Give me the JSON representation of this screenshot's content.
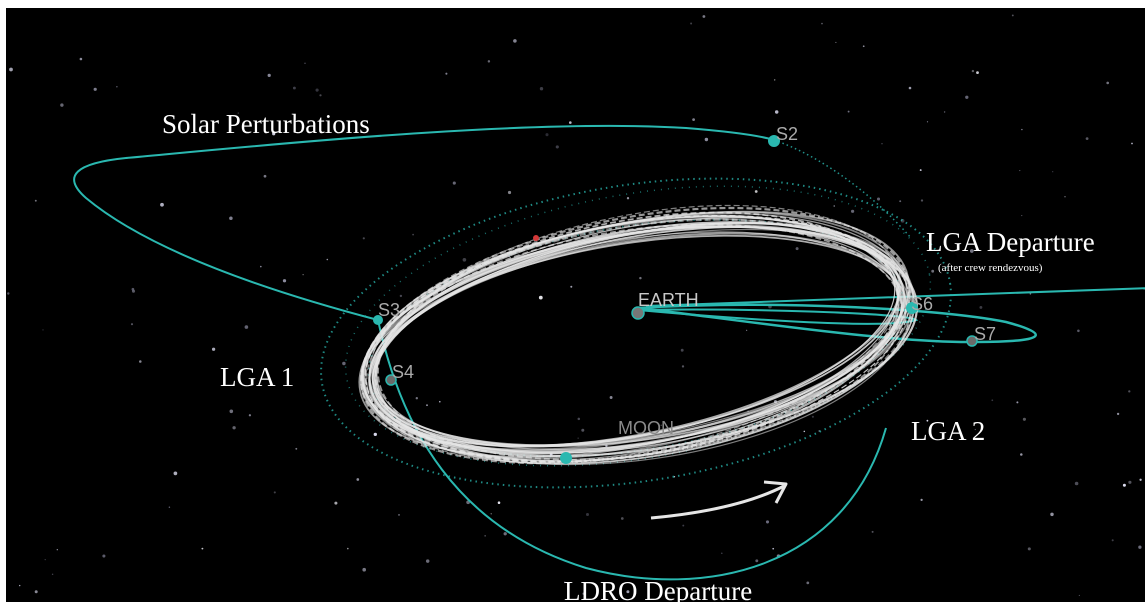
{
  "labels": {
    "solar_perturbations": "Solar Perturbations",
    "lga_departure": "LGA Departure",
    "lga_departure_note": "(after crew rendezvous)",
    "lga1": "LGA 1",
    "lga2": "LGA 2",
    "ldro_departure": "LDRO Departure"
  },
  "bodies": {
    "earth": "EARTH",
    "moon": "MOON"
  },
  "state_markers": [
    "S2",
    "S3",
    "S4",
    "S6",
    "S7"
  ],
  "colors": {
    "background": "#000000",
    "trajectory": "#2ab8b0",
    "orbit_bundle": "#e6e6e6",
    "body_label": "#c8c8c8",
    "annotation": "#ffffff"
  },
  "icons": {
    "direction_arrow": "curved-arrow-icon"
  }
}
